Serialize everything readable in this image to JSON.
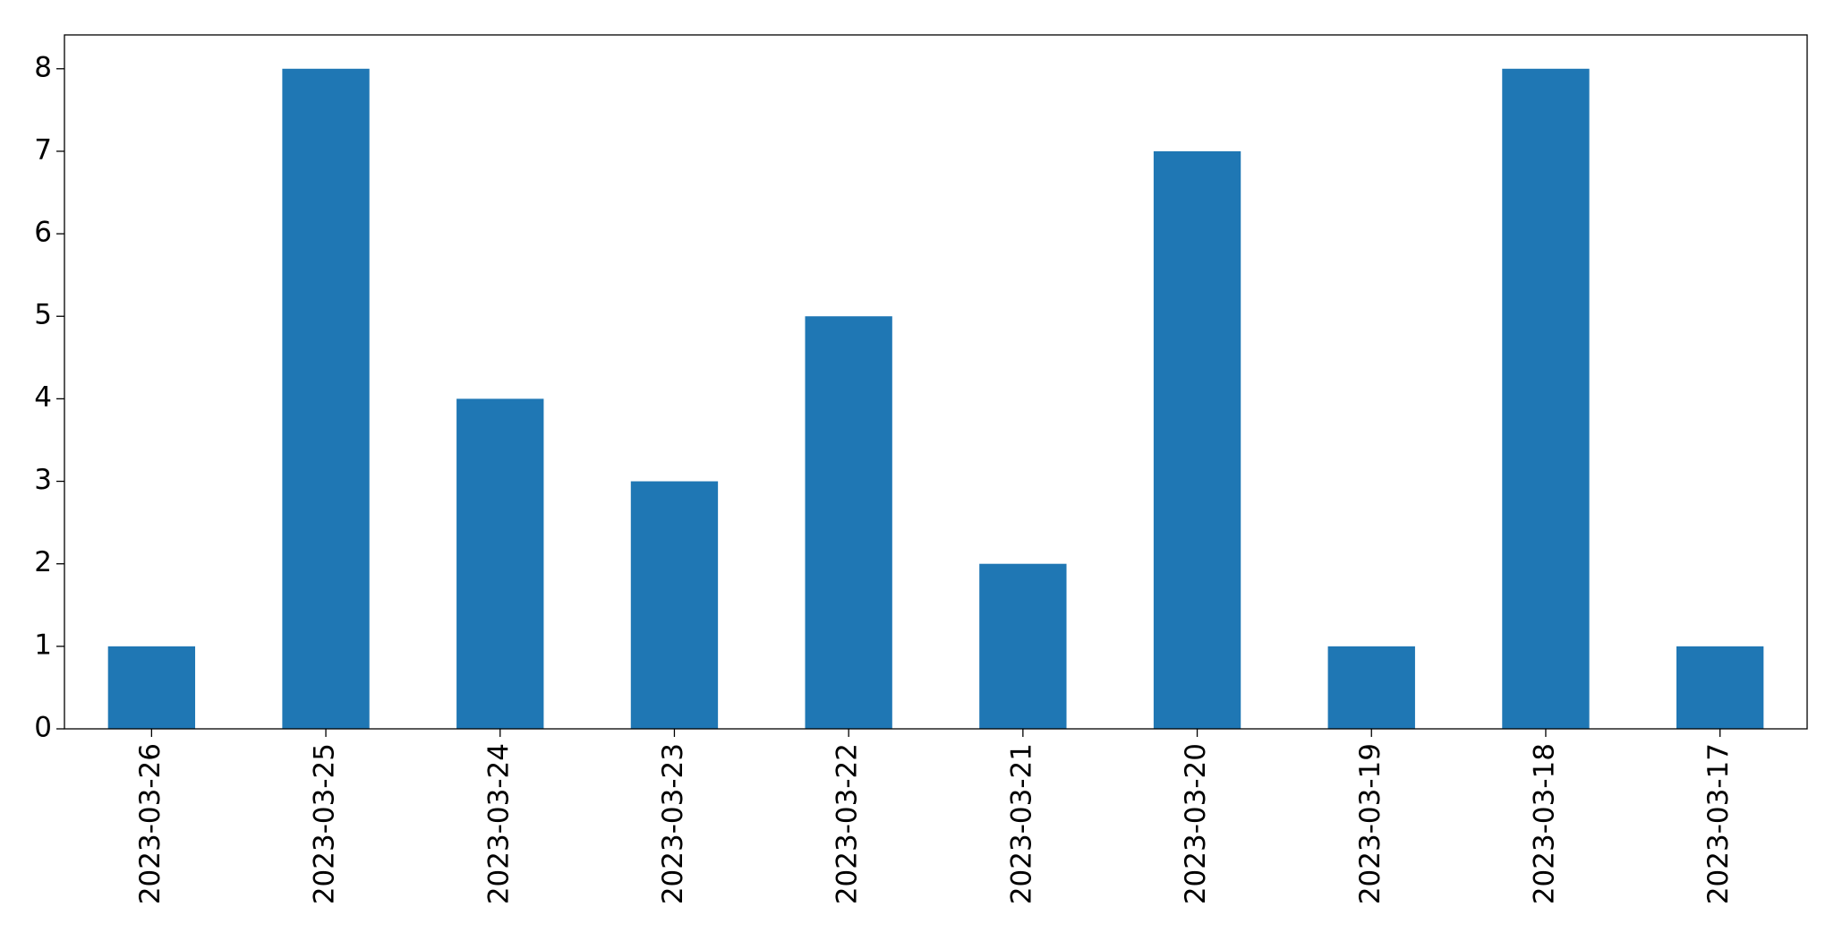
{
  "chart_data": {
    "type": "bar",
    "categories": [
      "2023-03-26",
      "2023-03-25",
      "2023-03-24",
      "2023-03-23",
      "2023-03-22",
      "2023-03-21",
      "2023-03-20",
      "2023-03-19",
      "2023-03-18",
      "2023-03-17"
    ],
    "values": [
      1,
      8,
      4,
      3,
      5,
      2,
      7,
      1,
      8,
      1
    ],
    "color": "#1f77b4",
    "ylim": [
      0,
      8.41
    ],
    "yticks": [
      0,
      1,
      2,
      3,
      4,
      5,
      6,
      7,
      8
    ],
    "grid": false
  }
}
